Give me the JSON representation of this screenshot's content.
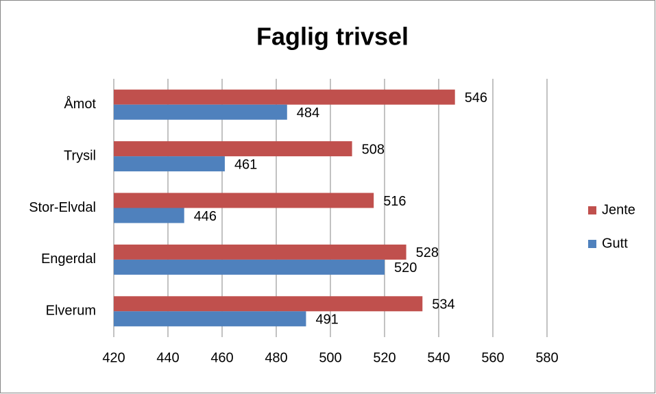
{
  "chart_data": {
    "type": "hbar",
    "title": "Faglig trivsel",
    "categories": [
      "Åmot",
      "Trysil",
      "Stor-Elvdal",
      "Engerdal",
      "Elverum"
    ],
    "series": [
      {
        "name": "Jente",
        "color": "#c0504d",
        "values": [
          546,
          508,
          516,
          528,
          534
        ]
      },
      {
        "name": "Gutt",
        "color": "#4f81bd",
        "values": [
          484,
          461,
          446,
          520,
          491
        ]
      }
    ],
    "xlim": [
      420,
      580
    ],
    "xticks": [
      420,
      440,
      460,
      480,
      500,
      520,
      540,
      560,
      580
    ],
    "grid": true,
    "legend": "right"
  }
}
